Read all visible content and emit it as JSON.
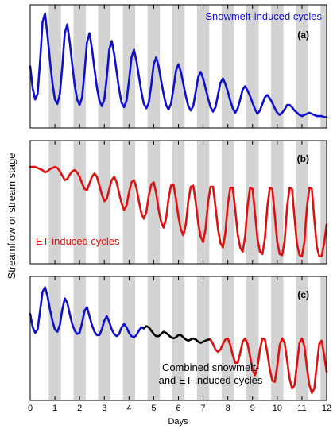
{
  "chart_data": {
    "type": "line",
    "ylabel": "Streamflow or stream stage",
    "xlabel": "Days",
    "xlim": [
      0,
      12
    ],
    "x_ticks": [
      "0",
      "1",
      "2",
      "3",
      "4",
      "5",
      "6",
      "7",
      "8",
      "9",
      "10",
      "11",
      "12"
    ],
    "night_bands": [
      [
        0.75,
        1.25
      ],
      [
        1.75,
        2.25
      ],
      [
        2.75,
        3.25
      ],
      [
        3.75,
        4.25
      ],
      [
        4.75,
        5.25
      ],
      [
        5.75,
        6.25
      ],
      [
        6.75,
        7.25
      ],
      [
        7.75,
        8.25
      ],
      [
        8.75,
        9.25
      ],
      [
        9.75,
        10.25
      ],
      [
        10.75,
        11.25
      ],
      [
        11.75,
        12.0
      ]
    ],
    "panels": [
      {
        "tag": "(a)",
        "label": "Snowmelt-induced cycles",
        "label_color": "#1010cc",
        "ylim": [
          0,
          1
        ],
        "series": [
          {
            "color": "#1010cc",
            "x": [
              0,
              0.1,
              0.2,
              0.3,
              0.4,
              0.5,
              0.6,
              0.7,
              0.8,
              0.9,
              1,
              1.1,
              1.2,
              1.3,
              1.4,
              1.5,
              1.6,
              1.7,
              1.8,
              1.9,
              2,
              2.1,
              2.2,
              2.3,
              2.4,
              2.5,
              2.6,
              2.7,
              2.8,
              2.9,
              3,
              3.1,
              3.2,
              3.3,
              3.4,
              3.5,
              3.6,
              3.7,
              3.8,
              3.9,
              4,
              4.1,
              4.2,
              4.3,
              4.4,
              4.5,
              4.6,
              4.7,
              4.8,
              4.9,
              5,
              5.1,
              5.2,
              5.3,
              5.4,
              5.5,
              5.6,
              5.7,
              5.8,
              5.9,
              6,
              6.1,
              6.2,
              6.3,
              6.4,
              6.5,
              6.6,
              6.7,
              6.8,
              6.9,
              7,
              7.1,
              7.2,
              7.3,
              7.4,
              7.5,
              7.6,
              7.7,
              7.8,
              7.9,
              8,
              8.1,
              8.2,
              8.3,
              8.4,
              8.5,
              8.6,
              8.7,
              8.8,
              8.9,
              9,
              9.1,
              9.2,
              9.3,
              9.4,
              9.5,
              9.6,
              9.7,
              9.8,
              9.9,
              10,
              10.1,
              10.2,
              10.3,
              10.4,
              10.5,
              10.6,
              10.7,
              10.8,
              10.9,
              11,
              11.1,
              11.2,
              11.3,
              11.4,
              11.5,
              11.6,
              11.7,
              11.8,
              11.9,
              12
            ],
            "y": [
              0.5,
              0.3,
              0.2,
              0.25,
              0.55,
              0.9,
              0.98,
              0.78,
              0.55,
              0.35,
              0.2,
              0.16,
              0.25,
              0.5,
              0.8,
              0.88,
              0.72,
              0.52,
              0.33,
              0.2,
              0.15,
              0.22,
              0.45,
              0.72,
              0.8,
              0.66,
              0.48,
              0.31,
              0.19,
              0.14,
              0.2,
              0.4,
              0.65,
              0.73,
              0.61,
              0.45,
              0.29,
              0.17,
              0.13,
              0.19,
              0.37,
              0.58,
              0.65,
              0.55,
              0.41,
              0.27,
              0.16,
              0.12,
              0.17,
              0.33,
              0.52,
              0.58,
              0.5,
              0.37,
              0.25,
              0.15,
              0.11,
              0.16,
              0.3,
              0.46,
              0.52,
              0.45,
              0.34,
              0.23,
              0.14,
              0.1,
              0.14,
              0.27,
              0.4,
              0.45,
              0.39,
              0.3,
              0.21,
              0.13,
              0.09,
              0.13,
              0.24,
              0.35,
              0.39,
              0.34,
              0.27,
              0.19,
              0.12,
              0.08,
              0.12,
              0.2,
              0.29,
              0.32,
              0.28,
              0.23,
              0.17,
              0.11,
              0.07,
              0.1,
              0.16,
              0.22,
              0.24,
              0.21,
              0.17,
              0.12,
              0.08,
              0.06,
              0.08,
              0.11,
              0.15,
              0.15,
              0.13,
              0.1,
              0.08,
              0.06,
              0.05,
              0.06,
              0.07,
              0.08,
              0.07,
              0.06,
              0.05,
              0.05,
              0.05,
              0.04,
              0.04
            ]
          }
        ]
      },
      {
        "tag": "(b)",
        "label": "ET-induced cycles",
        "label_color": "#dd1111",
        "ylim": [
          0,
          1
        ],
        "series": [
          {
            "color": "#dd1111",
            "x": [
              0,
              0.1,
              0.2,
              0.3,
              0.4,
              0.5,
              0.6,
              0.7,
              0.8,
              0.9,
              1,
              1.1,
              1.2,
              1.3,
              1.4,
              1.5,
              1.6,
              1.7,
              1.8,
              1.9,
              2,
              2.1,
              2.2,
              2.3,
              2.4,
              2.5,
              2.6,
              2.7,
              2.8,
              2.9,
              3,
              3.1,
              3.2,
              3.3,
              3.4,
              3.5,
              3.6,
              3.7,
              3.8,
              3.9,
              4,
              4.1,
              4.2,
              4.3,
              4.4,
              4.5,
              4.6,
              4.7,
              4.8,
              4.9,
              5,
              5.1,
              5.2,
              5.3,
              5.4,
              5.5,
              5.6,
              5.7,
              5.8,
              5.9,
              6,
              6.1,
              6.2,
              6.3,
              6.4,
              6.5,
              6.6,
              6.7,
              6.8,
              6.9,
              7,
              7.1,
              7.2,
              7.3,
              7.4,
              7.5,
              7.6,
              7.7,
              7.8,
              7.9,
              8,
              8.1,
              8.2,
              8.3,
              8.4,
              8.5,
              8.6,
              8.7,
              8.8,
              8.9,
              9,
              9.1,
              9.2,
              9.3,
              9.4,
              9.5,
              9.6,
              9.7,
              9.8,
              9.9,
              10,
              10.1,
              10.2,
              10.3,
              10.4,
              10.5,
              10.6,
              10.7,
              10.8,
              10.9,
              11,
              11.1,
              11.2,
              11.3,
              11.4,
              11.5,
              11.6,
              11.7,
              11.8,
              11.9,
              12
            ],
            "y": [
              0.82,
              0.82,
              0.82,
              0.81,
              0.8,
              0.79,
              0.77,
              0.78,
              0.8,
              0.81,
              0.82,
              0.81,
              0.78,
              0.74,
              0.7,
              0.71,
              0.75,
              0.78,
              0.79,
              0.77,
              0.73,
              0.67,
              0.62,
              0.61,
              0.67,
              0.73,
              0.76,
              0.73,
              0.65,
              0.57,
              0.51,
              0.53,
              0.62,
              0.7,
              0.73,
              0.68,
              0.58,
              0.49,
              0.43,
              0.47,
              0.59,
              0.68,
              0.7,
              0.63,
              0.51,
              0.4,
              0.35,
              0.41,
              0.56,
              0.66,
              0.68,
              0.58,
              0.43,
              0.32,
              0.27,
              0.35,
              0.53,
              0.65,
              0.66,
              0.53,
              0.37,
              0.25,
              0.2,
              0.3,
              0.51,
              0.64,
              0.65,
              0.5,
              0.31,
              0.19,
              0.14,
              0.26,
              0.5,
              0.64,
              0.64,
              0.46,
              0.26,
              0.13,
              0.09,
              0.22,
              0.48,
              0.63,
              0.63,
              0.43,
              0.21,
              0.09,
              0.05,
              0.19,
              0.47,
              0.63,
              0.62,
              0.4,
              0.17,
              0.05,
              0.03,
              0.17,
              0.46,
              0.63,
              0.62,
              0.38,
              0.14,
              0.03,
              0.02,
              0.15,
              0.46,
              0.63,
              0.62,
              0.36,
              0.12,
              0.02,
              0.01,
              0.14,
              0.45,
              0.63,
              0.62,
              0.35,
              0.1,
              0.01,
              0.01,
              0.13,
              0.3
            ]
          }
        ]
      },
      {
        "tag": "(c)",
        "label": "Combined snowmelt-\nand ET-induced cycles",
        "label_color": "#000000",
        "ylim": [
          0,
          1
        ],
        "series": [
          {
            "color": "#1010cc",
            "x": [
              0,
              0.1,
              0.2,
              0.3,
              0.4,
              0.5,
              0.6,
              0.7,
              0.8,
              0.9,
              1,
              1.1,
              1.2,
              1.3,
              1.4,
              1.5,
              1.6,
              1.7,
              1.8,
              1.9,
              2,
              2.1,
              2.2,
              2.3,
              2.4,
              2.5,
              2.6,
              2.7,
              2.8,
              2.9,
              3,
              3.1,
              3.2,
              3.3,
              3.4,
              3.5,
              3.6,
              3.7,
              3.8,
              3.9,
              4,
              4.1,
              4.2,
              4.3,
              4.4,
              4.5,
              4.6
            ],
            "y": [
              0.72,
              0.6,
              0.55,
              0.58,
              0.75,
              0.92,
              0.96,
              0.88,
              0.76,
              0.66,
              0.58,
              0.56,
              0.62,
              0.76,
              0.86,
              0.82,
              0.72,
              0.63,
              0.57,
              0.54,
              0.55,
              0.64,
              0.75,
              0.78,
              0.7,
              0.62,
              0.56,
              0.53,
              0.53,
              0.58,
              0.66,
              0.7,
              0.65,
              0.58,
              0.54,
              0.52,
              0.54,
              0.6,
              0.63,
              0.6,
              0.55,
              0.52,
              0.51,
              0.53,
              0.57,
              0.6,
              0.59
            ]
          },
          {
            "color": "#000000",
            "x": [
              4.6,
              4.7,
              4.8,
              4.9,
              5,
              5.1,
              5.2,
              5.3,
              5.4,
              5.5,
              5.6,
              5.7,
              5.8,
              5.9,
              6,
              6.1,
              6.2,
              6.3,
              6.4,
              6.5,
              6.6,
              6.7,
              6.8,
              6.9,
              7,
              7.1,
              7.2,
              7.3
            ],
            "y": [
              0.59,
              0.61,
              0.6,
              0.57,
              0.54,
              0.52,
              0.52,
              0.54,
              0.56,
              0.55,
              0.53,
              0.51,
              0.5,
              0.51,
              0.53,
              0.53,
              0.51,
              0.49,
              0.48,
              0.49,
              0.5,
              0.49,
              0.47,
              0.46,
              0.47,
              0.48,
              0.49,
              0.49
            ]
          },
          {
            "color": "#dd1111",
            "x": [
              7.3,
              7.4,
              7.5,
              7.6,
              7.7,
              7.8,
              7.9,
              8,
              8.1,
              8.2,
              8.3,
              8.4,
              8.5,
              8.6,
              8.7,
              8.8,
              8.9,
              9,
              9.1,
              9.2,
              9.3,
              9.4,
              9.5,
              9.6,
              9.7,
              9.8,
              9.9,
              10,
              10.1,
              10.2,
              10.3,
              10.4,
              10.5,
              10.6,
              10.7,
              10.8,
              10.9,
              11,
              11.1,
              11.2,
              11.3,
              11.4,
              11.5,
              11.6,
              11.7,
              11.8,
              11.9,
              12
            ],
            "y": [
              0.49,
              0.45,
              0.4,
              0.38,
              0.4,
              0.45,
              0.49,
              0.5,
              0.44,
              0.35,
              0.28,
              0.28,
              0.37,
              0.47,
              0.5,
              0.45,
              0.34,
              0.22,
              0.17,
              0.24,
              0.4,
              0.5,
              0.49,
              0.37,
              0.22,
              0.12,
              0.11,
              0.25,
              0.44,
              0.5,
              0.46,
              0.3,
              0.14,
              0.05,
              0.08,
              0.27,
              0.46,
              0.5,
              0.43,
              0.24,
              0.08,
              0.01,
              0.05,
              0.26,
              0.45,
              0.48,
              0.35,
              0.2
            ]
          }
        ]
      }
    ]
  }
}
